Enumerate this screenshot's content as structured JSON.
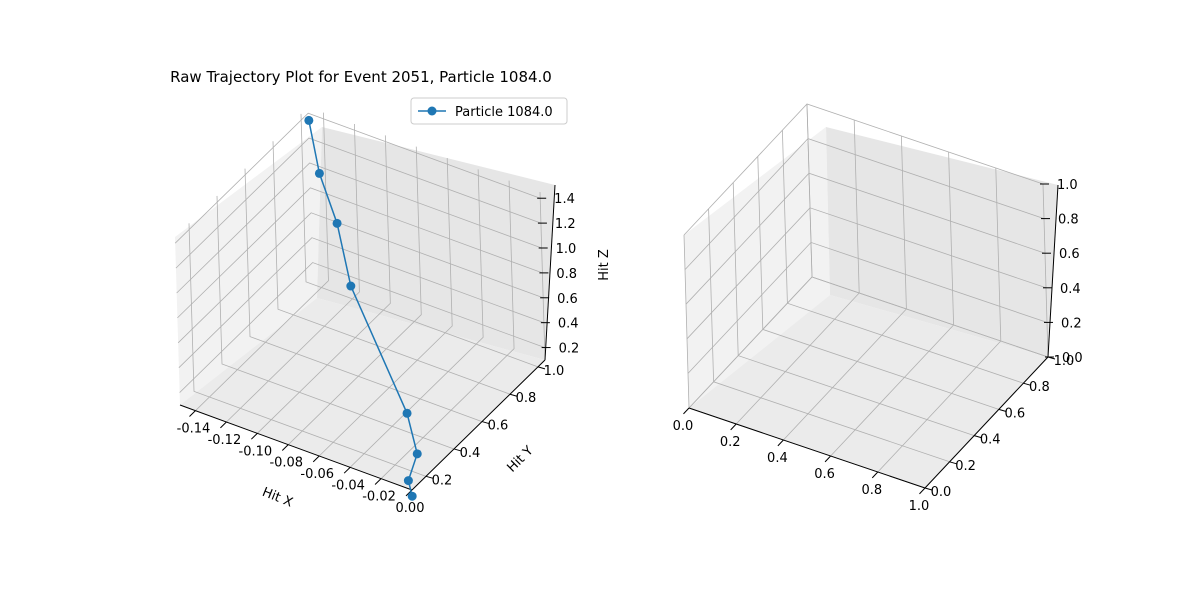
{
  "figure": {
    "title": "Raw Trajectory Plot for Event 2051, Particle 1084.0"
  },
  "chart_data": [
    {
      "type": "scatter3d-line",
      "title": "Raw Trajectory Plot for Event 2051, Particle 1084.0",
      "xlabel": "Hit X",
      "ylabel": "Hit Y",
      "zlabel": "Hit Z",
      "xlim": [
        -0.15,
        0.0
      ],
      "ylim": [
        0.1,
        1.05
      ],
      "zlim": [
        0.1,
        1.45
      ],
      "xticks": [
        "-0.14",
        "-0.12",
        "-0.10",
        "-0.08",
        "-0.06",
        "-0.04",
        "-0.02",
        "0.00"
      ],
      "yticks": [
        "0.2",
        "0.4",
        "0.6",
        "0.8",
        "1.0"
      ],
      "zticks": [
        "0.2",
        "0.4",
        "0.6",
        "0.8",
        "1.0",
        "1.2",
        "1.4"
      ],
      "legend_position": "top-right",
      "grid": true,
      "series": [
        {
          "name": "Particle 1084.0",
          "color": "#1f77b4",
          "marker": "circle",
          "points": [
            {
              "x": -0.145,
              "y": 1.0,
              "z": 1.42
            },
            {
              "x": -0.125,
              "y": 0.85,
              "z": 1.25
            },
            {
              "x": -0.105,
              "y": 0.75,
              "z": 1.05
            },
            {
              "x": -0.085,
              "y": 0.62,
              "z": 0.78
            },
            {
              "x": -0.03,
              "y": 0.4,
              "z": 0.25
            },
            {
              "x": -0.01,
              "y": 0.25,
              "z": 0.18
            },
            {
              "x": -0.005,
              "y": 0.13,
              "z": 0.12
            },
            {
              "x": 0.0,
              "y": 0.1,
              "z": 0.05
            }
          ]
        }
      ]
    },
    {
      "type": "scatter3d-line",
      "title": "",
      "xlabel": "",
      "ylabel": "",
      "zlabel": "",
      "xlim": [
        0.0,
        1.0
      ],
      "ylim": [
        0.0,
        1.0
      ],
      "zlim": [
        0.0,
        1.0
      ],
      "xticks": [
        "0.0",
        "0.2",
        "0.4",
        "0.6",
        "0.8",
        "1.0"
      ],
      "yticks": [
        "0.0",
        "0.2",
        "0.4",
        "0.6",
        "0.8",
        "1.0"
      ],
      "zticks": [
        "0.0",
        "0.2",
        "0.4",
        "0.6",
        "0.8",
        "1.0"
      ],
      "grid": true,
      "series": []
    }
  ]
}
